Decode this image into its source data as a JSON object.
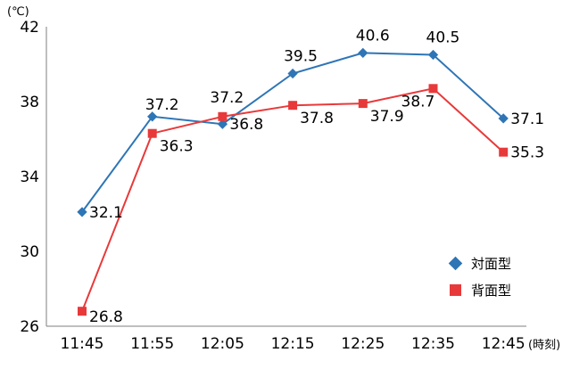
{
  "chart_data": {
    "type": "line",
    "y_unit": "(℃)",
    "x_unit": "(時刻)",
    "categories": [
      "11:45",
      "11:55",
      "12:05",
      "12:15",
      "12:25",
      "12:35",
      "12:45"
    ],
    "y_ticks": [
      "42",
      "38",
      "34",
      "30",
      "26"
    ],
    "ylim": [
      26,
      42
    ],
    "grid": false,
    "legend_position": "bottom-right",
    "series": [
      {
        "name": "対面型",
        "color": "#2e75b6",
        "marker": "diamond",
        "values": [
          32.1,
          37.2,
          36.8,
          39.5,
          40.6,
          40.5,
          37.1
        ],
        "labels": [
          "32.1",
          "37.2",
          "36.8",
          "39.5",
          "40.6",
          "40.5",
          "37.1"
        ]
      },
      {
        "name": "背面型",
        "color": "#e8393a",
        "marker": "square",
        "values": [
          26.8,
          36.3,
          37.2,
          37.8,
          37.9,
          38.7,
          35.3
        ],
        "labels": [
          "26.8",
          "36.3",
          "37.2",
          "37.8",
          "37.9",
          "38.7",
          "35.3"
        ]
      }
    ]
  }
}
